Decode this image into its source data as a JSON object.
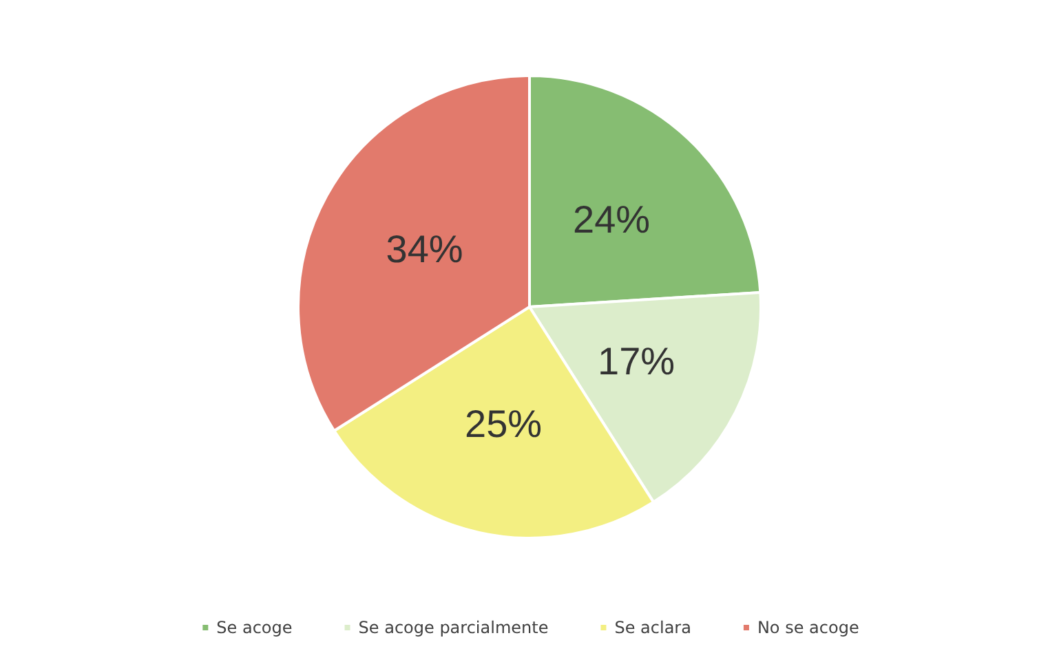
{
  "chart_data": {
    "type": "pie",
    "categories": [
      "Se acoge",
      "Se acoge parcialmente",
      "Se aclara",
      "No se acoge"
    ],
    "values": [
      24,
      17,
      25,
      34
    ],
    "colors": [
      "#86bd72",
      "#dcedcb",
      "#f3ef82",
      "#e27a6c"
    ],
    "value_labels": [
      "24%",
      "17%",
      "25%",
      "34%"
    ],
    "legend": "bottom"
  }
}
